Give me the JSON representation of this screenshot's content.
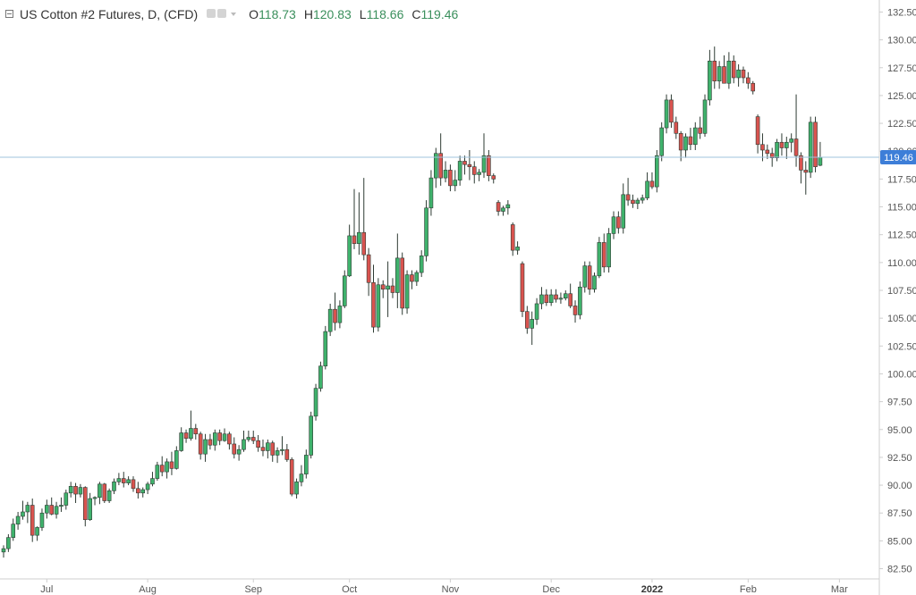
{
  "legend": {
    "title": "US Cotton #2 Futures, D, (CFD)",
    "open_label": "O",
    "open": "118.73",
    "high_label": "H",
    "high": "120.83",
    "low_label": "L",
    "low": "118.66",
    "close_label": "C",
    "close": "119.46"
  },
  "colors": {
    "up": "#3fb26c",
    "down": "#d9534f",
    "price_line": "#9fc3dd",
    "price_badge": "#3d7ed8",
    "axis": "#cfcfcf"
  },
  "icons": [
    "collapse-icon",
    "eye-icon",
    "settings-icon",
    "caret-down-icon"
  ],
  "chart_data": {
    "type": "candlestick",
    "ylim": [
      81.5,
      133.5
    ],
    "y_ticks": [
      "82.50",
      "85.00",
      "87.50",
      "90.00",
      "92.50",
      "95.00",
      "97.50",
      "100.00",
      "102.50",
      "105.00",
      "107.50",
      "110.00",
      "112.50",
      "115.00",
      "117.50",
      "120.00",
      "122.50",
      "125.00",
      "127.50",
      "130.00",
      "132.50"
    ],
    "x_labels": [
      {
        "label": "Jul",
        "bar": 9,
        "bold": false
      },
      {
        "label": "Aug",
        "bar": 30,
        "bold": false
      },
      {
        "label": "Sep",
        "bar": 52,
        "bold": false
      },
      {
        "label": "Oct",
        "bar": 72,
        "bold": false
      },
      {
        "label": "Nov",
        "bar": 93,
        "bold": false
      },
      {
        "label": "Dec",
        "bar": 114,
        "bold": false
      },
      {
        "label": "2022",
        "bar": 135,
        "bold": true
      },
      {
        "label": "Feb",
        "bar": 155,
        "bold": false
      },
      {
        "label": "Mar",
        "bar": 174,
        "bold": false
      }
    ],
    "last_price": "119.46",
    "candles": [
      [
        84.0,
        84.6,
        83.5,
        84.3
      ],
      [
        84.3,
        85.6,
        84.0,
        85.3
      ],
      [
        85.3,
        87.0,
        85.0,
        86.5
      ],
      [
        86.5,
        87.6,
        86.0,
        87.2
      ],
      [
        87.2,
        88.6,
        86.9,
        87.6
      ],
      [
        87.6,
        88.5,
        86.6,
        88.2
      ],
      [
        88.2,
        88.8,
        84.9,
        85.5
      ],
      [
        85.5,
        86.3,
        85.0,
        86.2
      ],
      [
        86.2,
        87.9,
        85.9,
        87.5
      ],
      [
        87.5,
        88.7,
        87.0,
        88.2
      ],
      [
        88.2,
        88.9,
        87.3,
        87.4
      ],
      [
        87.4,
        88.5,
        87.0,
        88.1
      ],
      [
        88.1,
        88.9,
        87.6,
        88.2
      ],
      [
        88.2,
        89.6,
        87.8,
        89.3
      ],
      [
        89.3,
        90.3,
        88.9,
        89.9
      ],
      [
        89.9,
        90.2,
        88.4,
        89.2
      ],
      [
        89.2,
        90.1,
        88.9,
        89.8
      ],
      [
        89.8,
        89.9,
        86.3,
        86.9
      ],
      [
        86.9,
        89.3,
        86.8,
        88.8
      ],
      [
        88.8,
        89.0,
        88.2,
        88.9
      ],
      [
        88.9,
        90.3,
        88.3,
        90.1
      ],
      [
        90.1,
        90.2,
        88.4,
        88.6
      ],
      [
        88.6,
        89.7,
        88.4,
        89.5
      ],
      [
        89.5,
        90.6,
        89.2,
        90.3
      ],
      [
        90.3,
        91.1,
        90.0,
        90.6
      ],
      [
        90.6,
        91.2,
        89.8,
        90.2
      ],
      [
        90.2,
        90.8,
        90.0,
        90.5
      ],
      [
        90.5,
        90.8,
        89.4,
        89.7
      ],
      [
        89.7,
        90.3,
        88.8,
        89.3
      ],
      [
        89.3,
        89.8,
        88.9,
        89.6
      ],
      [
        89.6,
        90.3,
        89.2,
        90.1
      ],
      [
        90.1,
        91.2,
        89.9,
        90.6
      ],
      [
        90.6,
        92.1,
        90.4,
        91.8
      ],
      [
        91.8,
        92.6,
        90.8,
        91.2
      ],
      [
        91.2,
        92.4,
        90.6,
        92.1
      ],
      [
        92.1,
        93.0,
        90.9,
        91.5
      ],
      [
        91.5,
        93.5,
        91.4,
        93.1
      ],
      [
        93.1,
        95.2,
        93.0,
        94.7
      ],
      [
        94.7,
        95.0,
        93.8,
        94.2
      ],
      [
        94.2,
        96.7,
        94.0,
        95.1
      ],
      [
        95.1,
        95.5,
        94.1,
        94.6
      ],
      [
        94.6,
        94.8,
        92.3,
        92.8
      ],
      [
        92.8,
        94.6,
        92.1,
        94.1
      ],
      [
        94.1,
        94.6,
        93.2,
        93.6
      ],
      [
        93.6,
        95.0,
        93.1,
        94.7
      ],
      [
        94.7,
        95.0,
        93.6,
        94.0
      ],
      [
        94.0,
        95.1,
        93.9,
        94.6
      ],
      [
        94.6,
        94.8,
        93.2,
        93.7
      ],
      [
        93.7,
        94.3,
        92.4,
        92.8
      ],
      [
        92.8,
        93.6,
        92.2,
        93.2
      ],
      [
        93.2,
        94.9,
        93.0,
        94.1
      ],
      [
        94.1,
        94.9,
        93.9,
        94.3
      ],
      [
        94.3,
        94.9,
        93.7,
        94.0
      ],
      [
        94.0,
        94.5,
        93.0,
        93.4
      ],
      [
        93.4,
        94.1,
        92.6,
        93.1
      ],
      [
        93.1,
        94.1,
        92.4,
        93.8
      ],
      [
        93.8,
        94.0,
        92.1,
        92.7
      ],
      [
        92.7,
        93.4,
        92.0,
        93.1
      ],
      [
        93.1,
        94.4,
        92.7,
        93.2
      ],
      [
        93.2,
        93.7,
        92.1,
        92.3
      ],
      [
        92.3,
        92.5,
        89.0,
        89.2
      ],
      [
        89.2,
        90.6,
        88.8,
        90.3
      ],
      [
        90.3,
        91.8,
        89.9,
        91.0
      ],
      [
        91.0,
        93.2,
        90.6,
        92.7
      ],
      [
        92.7,
        96.6,
        92.4,
        96.2
      ],
      [
        96.2,
        99.1,
        95.8,
        98.7
      ],
      [
        98.7,
        101.1,
        98.4,
        100.7
      ],
      [
        100.7,
        104.3,
        100.4,
        103.8
      ],
      [
        103.8,
        106.3,
        103.4,
        105.8
      ],
      [
        105.8,
        107.3,
        103.9,
        104.6
      ],
      [
        104.6,
        106.6,
        104.1,
        106.1
      ],
      [
        106.1,
        109.3,
        105.9,
        108.8
      ],
      [
        108.8,
        113.4,
        108.7,
        112.4
      ],
      [
        112.4,
        116.6,
        111.2,
        111.7
      ],
      [
        111.7,
        116.3,
        110.7,
        112.7
      ],
      [
        112.7,
        117.6,
        110.2,
        110.7
      ],
      [
        110.7,
        111.3,
        107.0,
        108.2
      ],
      [
        108.2,
        109.8,
        103.7,
        104.2
      ],
      [
        104.2,
        108.6,
        103.8,
        108.0
      ],
      [
        108.0,
        108.4,
        106.8,
        107.6
      ],
      [
        107.6,
        110.1,
        105.1,
        107.9
      ],
      [
        107.9,
        108.6,
        106.8,
        107.3
      ],
      [
        107.3,
        112.6,
        105.9,
        110.4
      ],
      [
        110.4,
        110.9,
        105.3,
        105.9
      ],
      [
        105.9,
        109.3,
        105.4,
        108.9
      ],
      [
        108.9,
        109.3,
        107.6,
        108.3
      ],
      [
        108.3,
        109.3,
        107.9,
        109.1
      ],
      [
        109.1,
        111.1,
        108.7,
        110.6
      ],
      [
        110.6,
        115.6,
        110.1,
        114.9
      ],
      [
        114.9,
        118.3,
        114.2,
        117.6
      ],
      [
        117.6,
        120.3,
        116.7,
        119.8
      ],
      [
        119.8,
        121.6,
        116.9,
        117.6
      ],
      [
        117.6,
        119.1,
        117.2,
        118.3
      ],
      [
        118.3,
        118.8,
        116.4,
        116.9
      ],
      [
        116.9,
        118.3,
        116.4,
        117.4
      ],
      [
        117.4,
        119.6,
        116.9,
        119.1
      ],
      [
        119.1,
        119.6,
        117.9,
        118.8
      ],
      [
        118.8,
        120.1,
        117.4,
        118.6
      ],
      [
        118.6,
        119.1,
        117.1,
        117.9
      ],
      [
        117.9,
        118.4,
        117.3,
        118.1
      ],
      [
        118.1,
        121.6,
        117.6,
        119.6
      ],
      [
        119.6,
        120.1,
        117.3,
        117.8
      ],
      [
        117.8,
        118.0,
        117.1,
        117.5
      ],
      [
        115.4,
        115.6,
        114.2,
        114.6
      ],
      [
        114.6,
        115.1,
        114.2,
        114.9
      ],
      [
        114.9,
        115.6,
        114.3,
        115.2
      ],
      [
        113.4,
        113.6,
        110.6,
        111.1
      ],
      [
        111.1,
        111.9,
        110.7,
        111.4
      ],
      [
        109.9,
        110.1,
        105.1,
        105.6
      ],
      [
        105.6,
        106.1,
        103.6,
        104.1
      ],
      [
        104.1,
        105.6,
        102.6,
        104.9
      ],
      [
        104.9,
        106.8,
        104.4,
        106.3
      ],
      [
        106.3,
        107.8,
        105.8,
        107.1
      ],
      [
        107.1,
        107.6,
        106.1,
        106.4
      ],
      [
        106.4,
        107.6,
        106.1,
        107.1
      ],
      [
        107.1,
        107.6,
        106.4,
        106.7
      ],
      [
        106.7,
        107.3,
        106.3,
        106.8
      ],
      [
        106.8,
        107.5,
        106.6,
        107.2
      ],
      [
        107.2,
        108.1,
        105.9,
        106.1
      ],
      [
        106.1,
        106.6,
        104.6,
        105.3
      ],
      [
        105.3,
        108.3,
        104.9,
        107.8
      ],
      [
        107.8,
        110.1,
        107.3,
        109.7
      ],
      [
        109.7,
        110.1,
        107.1,
        107.6
      ],
      [
        107.6,
        109.1,
        107.3,
        108.8
      ],
      [
        108.8,
        112.3,
        108.6,
        111.8
      ],
      [
        111.8,
        112.6,
        109.1,
        109.6
      ],
      [
        109.6,
        113.1,
        109.1,
        112.6
      ],
      [
        112.6,
        114.6,
        112.1,
        114.1
      ],
      [
        114.1,
        114.6,
        112.6,
        113.1
      ],
      [
        113.1,
        117.1,
        112.6,
        116.1
      ],
      [
        116.1,
        117.6,
        115.1,
        115.6
      ],
      [
        115.6,
        116.1,
        114.9,
        115.3
      ],
      [
        115.3,
        115.8,
        114.8,
        115.6
      ],
      [
        115.6,
        116.1,
        115.3,
        115.8
      ],
      [
        115.8,
        118.1,
        115.6,
        117.3
      ],
      [
        117.3,
        118.1,
        116.6,
        116.8
      ],
      [
        116.8,
        120.1,
        116.3,
        119.6
      ],
      [
        119.6,
        122.6,
        119.1,
        122.1
      ],
      [
        122.1,
        125.1,
        121.6,
        124.6
      ],
      [
        124.6,
        125.1,
        122.1,
        122.6
      ],
      [
        122.6,
        123.1,
        121.1,
        121.6
      ],
      [
        121.6,
        121.8,
        119.1,
        120.1
      ],
      [
        120.1,
        121.6,
        119.4,
        121.3
      ],
      [
        121.3,
        122.1,
        120.1,
        120.6
      ],
      [
        120.6,
        122.6,
        120.1,
        122.1
      ],
      [
        122.1,
        123.1,
        121.1,
        121.6
      ],
      [
        121.6,
        125.1,
        121.3,
        124.6
      ],
      [
        124.6,
        129.1,
        124.1,
        128.1
      ],
      [
        128.1,
        129.4,
        125.6,
        126.3
      ],
      [
        126.3,
        128.1,
        125.6,
        127.6
      ],
      [
        127.6,
        128.6,
        126.6,
        126.1
      ],
      [
        126.1,
        128.9,
        125.6,
        128.1
      ],
      [
        128.1,
        128.6,
        126.1,
        126.6
      ],
      [
        126.6,
        127.8,
        125.8,
        127.3
      ],
      [
        127.3,
        127.6,
        126.1,
        126.6
      ],
      [
        126.6,
        127.1,
        125.6,
        126.1
      ],
      [
        126.1,
        126.3,
        125.1,
        125.4
      ],
      [
        123.1,
        123.3,
        119.8,
        120.6
      ],
      [
        120.6,
        121.6,
        119.1,
        120.1
      ],
      [
        120.1,
        120.6,
        119.3,
        119.8
      ],
      [
        119.8,
        120.3,
        118.6,
        119.4
      ],
      [
        119.4,
        121.1,
        119.1,
        120.8
      ],
      [
        120.8,
        121.6,
        119.6,
        120.3
      ],
      [
        120.3,
        121.3,
        119.3,
        120.8
      ],
      [
        120.8,
        121.6,
        119.9,
        121.1
      ],
      [
        121.1,
        125.1,
        118.6,
        119.6
      ],
      [
        119.6,
        119.9,
        117.1,
        118.3
      ],
      [
        118.3,
        119.1,
        116.1,
        118.1
      ],
      [
        118.1,
        123.1,
        117.6,
        122.6
      ],
      [
        122.6,
        123.1,
        118.1,
        118.6
      ],
      [
        118.73,
        120.83,
        118.66,
        119.46
      ]
    ]
  }
}
